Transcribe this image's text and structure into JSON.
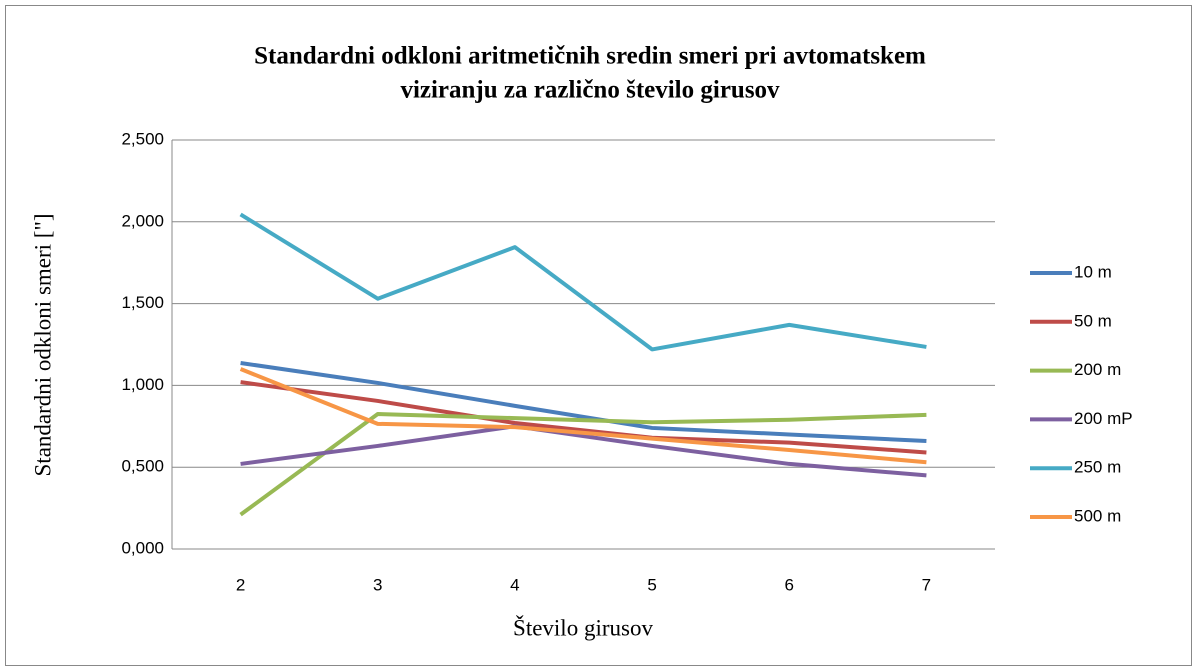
{
  "chart_data": {
    "type": "line",
    "title": [
      "Standardni odkloni aritmetičnih sredin smeri pri avtomatskem",
      "viziranju za različno število girusov"
    ],
    "x_label": "Število girusov",
    "y_label": "Standardni odkloni smeri [\"]",
    "categories": [
      "2",
      "3",
      "4",
      "5",
      "6",
      "7"
    ],
    "series": [
      {
        "name": "10 m",
        "color": "#4a7ebb",
        "values": [
          1.137,
          1.015,
          0.875,
          0.74,
          0.7,
          0.66
        ]
      },
      {
        "name": "50 m",
        "color": "#be4b48",
        "values": [
          1.02,
          0.905,
          0.77,
          0.68,
          0.65,
          0.59
        ]
      },
      {
        "name": "200 m",
        "color": "#98b954",
        "values": [
          0.21,
          0.825,
          0.8,
          0.775,
          0.79,
          0.82
        ]
      },
      {
        "name": "200 mP",
        "color": "#7d60a0",
        "values": [
          0.52,
          0.63,
          0.75,
          0.63,
          0.52,
          0.45
        ]
      },
      {
        "name": "250 m",
        "color": "#46aac5",
        "values": [
          2.045,
          1.53,
          1.845,
          1.22,
          1.37,
          1.235
        ]
      },
      {
        "name": "500 m",
        "color": "#f79646",
        "values": [
          1.1,
          0.765,
          0.745,
          0.675,
          0.605,
          0.53
        ]
      }
    ],
    "ylim": [
      0,
      2.5
    ],
    "yticks": [
      {
        "value": 0,
        "label": "0,000"
      },
      {
        "value": 0.5,
        "label": "0,500"
      },
      {
        "value": 1,
        "label": "1,000"
      },
      {
        "value": 1.5,
        "label": "1,500"
      },
      {
        "value": 2,
        "label": "2,000"
      },
      {
        "value": 2.5,
        "label": "2,500"
      }
    ],
    "grid": true,
    "legend": "right"
  }
}
